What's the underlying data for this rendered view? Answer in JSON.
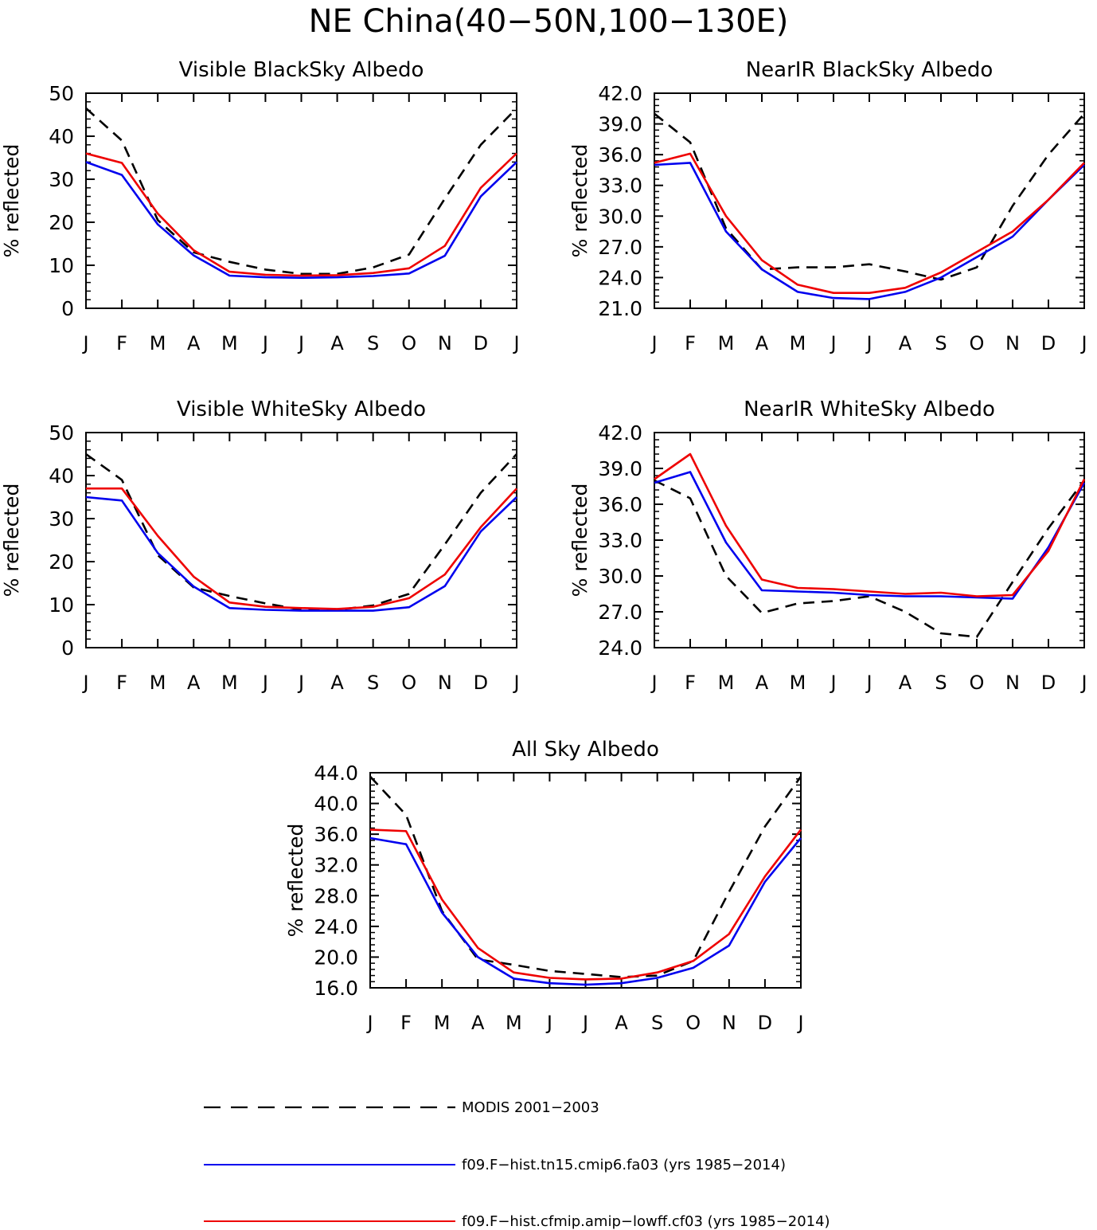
{
  "title": "NE China(40−50N,100−130E)",
  "ylabel": "% reflected",
  "months": [
    "J",
    "F",
    "M",
    "A",
    "M",
    "J",
    "J",
    "A",
    "S",
    "O",
    "N",
    "D",
    "J"
  ],
  "colors": {
    "modis": "#000000",
    "cmip6": "#0000ee",
    "lowff": "#ee0000"
  },
  "legend": [
    {
      "key": "modis",
      "label": "MODIS 2001−2003"
    },
    {
      "key": "cmip6",
      "label": "f09.F−hist.tn15.cmip6.fa03 (yrs 1985−2014)"
    },
    {
      "key": "lowff",
      "label": "f09.F−hist.cfmip.amip−lowff.cf03 (yrs 1985−2014)"
    }
  ],
  "chart_data": [
    {
      "type": "line",
      "title": "Visible BlackSky Albedo",
      "ylabel": "% reflected",
      "categories": [
        "J",
        "F",
        "M",
        "A",
        "M",
        "J",
        "J",
        "A",
        "S",
        "O",
        "N",
        "D",
        "J"
      ],
      "ylim": [
        0,
        50
      ],
      "yticks": [
        "0",
        "10",
        "20",
        "30",
        "40",
        "50"
      ],
      "series": [
        {
          "name": "MODIS 2001−2003",
          "key": "modis",
          "values": [
            46.5,
            39.0,
            20.5,
            13.0,
            10.8,
            9.0,
            8.0,
            8.0,
            9.5,
            12.5,
            25.5,
            38.0,
            46.5
          ]
        },
        {
          "name": "f09.F−hist.tn15.cmip6.fa03 (yrs 1985−2014)",
          "key": "cmip6",
          "values": [
            34.0,
            31.0,
            19.5,
            12.3,
            7.6,
            7.2,
            7.1,
            7.2,
            7.5,
            8.1,
            12.2,
            26.0,
            34.0
          ]
        },
        {
          "name": "f09.F−hist.cfmip.amip−lowff.cf03 (yrs 1985−2014)",
          "key": "lowff",
          "values": [
            36.0,
            33.8,
            22.0,
            13.5,
            8.5,
            7.8,
            7.6,
            7.7,
            8.2,
            9.3,
            14.5,
            28.0,
            36.0
          ]
        }
      ]
    },
    {
      "type": "line",
      "title": "NearIR BlackSky Albedo",
      "ylabel": "% reflected",
      "categories": [
        "J",
        "F",
        "M",
        "A",
        "M",
        "J",
        "J",
        "A",
        "S",
        "O",
        "N",
        "D",
        "J"
      ],
      "ylim": [
        21,
        42
      ],
      "yticks": [
        "21.0",
        "24.0",
        "27.0",
        "30.0",
        "33.0",
        "36.0",
        "39.0",
        "42.0"
      ],
      "series": [
        {
          "name": "MODIS 2001−2003",
          "key": "modis",
          "values": [
            40.0,
            37.2,
            28.8,
            24.8,
            25.0,
            25.0,
            25.3,
            24.6,
            23.8,
            25.0,
            31.0,
            36.0,
            40.0
          ]
        },
        {
          "name": "f09.F−hist.tn15.cmip6.fa03 (yrs 1985−2014)",
          "key": "cmip6",
          "values": [
            35.0,
            35.2,
            28.5,
            24.8,
            22.6,
            22.0,
            21.9,
            22.6,
            24.0,
            26.0,
            28.0,
            31.6,
            35.0
          ]
        },
        {
          "name": "f09.F−hist.cfmip.amip−lowff.cf03 (yrs 1985−2014)",
          "key": "lowff",
          "values": [
            35.2,
            36.1,
            30.0,
            25.7,
            23.3,
            22.5,
            22.5,
            23.0,
            24.5,
            26.5,
            28.5,
            31.6,
            35.2
          ]
        }
      ]
    },
    {
      "type": "line",
      "title": "Visible WhiteSky Albedo",
      "ylabel": "% reflected",
      "categories": [
        "J",
        "F",
        "M",
        "A",
        "M",
        "J",
        "J",
        "A",
        "S",
        "O",
        "N",
        "D",
        "J"
      ],
      "ylim": [
        0,
        50
      ],
      "yticks": [
        "0",
        "10",
        "20",
        "30",
        "40",
        "50"
      ],
      "series": [
        {
          "name": "MODIS 2001−2003",
          "key": "modis",
          "values": [
            45.0,
            39.0,
            21.5,
            14.0,
            12.0,
            10.3,
            8.8,
            8.8,
            9.8,
            12.5,
            24.0,
            36.0,
            45.0
          ]
        },
        {
          "name": "f09.F−hist.tn15.cmip6.fa03 (yrs 1985−2014)",
          "key": "cmip6",
          "values": [
            35.0,
            34.2,
            22.0,
            14.2,
            9.2,
            8.8,
            8.6,
            8.6,
            8.6,
            9.4,
            14.3,
            27.0,
            35.0
          ]
        },
        {
          "name": "f09.F−hist.cfmip.amip−lowff.cf03 (yrs 1985−2014)",
          "key": "lowff",
          "values": [
            37.0,
            37.0,
            26.0,
            16.5,
            10.5,
            9.5,
            9.2,
            9.0,
            9.5,
            11.5,
            17.0,
            28.0,
            37.0
          ]
        }
      ]
    },
    {
      "type": "line",
      "title": "NearIR WhiteSky Albedo",
      "ylabel": "% reflected",
      "categories": [
        "J",
        "F",
        "M",
        "A",
        "M",
        "J",
        "J",
        "A",
        "S",
        "O",
        "N",
        "D",
        "J"
      ],
      "ylim": [
        24,
        42
      ],
      "yticks": [
        "24.0",
        "27.0",
        "30.0",
        "33.0",
        "36.0",
        "39.0",
        "42.0"
      ],
      "series": [
        {
          "name": "MODIS 2001−2003",
          "key": "modis",
          "values": [
            38.0,
            36.5,
            30.0,
            26.9,
            27.7,
            27.9,
            28.3,
            27.0,
            25.2,
            24.9,
            29.5,
            34.0,
            38.0
          ]
        },
        {
          "name": "f09.F−hist.tn15.cmip6.fa03 (yrs 1985−2014)",
          "key": "cmip6",
          "values": [
            37.8,
            38.7,
            32.8,
            28.8,
            28.7,
            28.6,
            28.4,
            28.3,
            28.3,
            28.2,
            28.1,
            32.4,
            37.8
          ]
        },
        {
          "name": "f09.F−hist.cfmip.amip−lowff.cf03 (yrs 1985−2014)",
          "key": "lowff",
          "values": [
            38.1,
            40.2,
            34.2,
            29.7,
            29.0,
            28.9,
            28.7,
            28.5,
            28.6,
            28.3,
            28.4,
            32.1,
            38.1
          ]
        }
      ]
    },
    {
      "type": "line",
      "title": "All Sky Albedo",
      "ylabel": "% reflected",
      "categories": [
        "J",
        "F",
        "M",
        "A",
        "M",
        "J",
        "J",
        "A",
        "S",
        "O",
        "N",
        "D",
        "J"
      ],
      "ylim": [
        16,
        44
      ],
      "yticks": [
        "16.0",
        "20.0",
        "24.0",
        "28.0",
        "32.0",
        "36.0",
        "40.0",
        "44.0"
      ],
      "series": [
        {
          "name": "MODIS 2001−2003",
          "key": "modis",
          "values": [
            43.5,
            38.5,
            26.0,
            19.7,
            19.0,
            18.2,
            17.8,
            17.4,
            17.6,
            19.5,
            28.5,
            37.0,
            43.5
          ]
        },
        {
          "name": "f09.F−hist.tn15.cmip6.fa03 (yrs 1985−2014)",
          "key": "cmip6",
          "values": [
            35.5,
            34.7,
            25.8,
            20.0,
            17.2,
            16.6,
            16.4,
            16.6,
            17.3,
            18.6,
            21.5,
            29.8,
            35.5
          ]
        },
        {
          "name": "f09.F−hist.cfmip.amip−lowff.cf03 (yrs 1985−2014)",
          "key": "lowff",
          "values": [
            36.6,
            36.4,
            27.5,
            21.2,
            18.0,
            17.3,
            17.1,
            17.2,
            18.0,
            19.5,
            23.0,
            30.5,
            36.6
          ]
        }
      ]
    }
  ]
}
